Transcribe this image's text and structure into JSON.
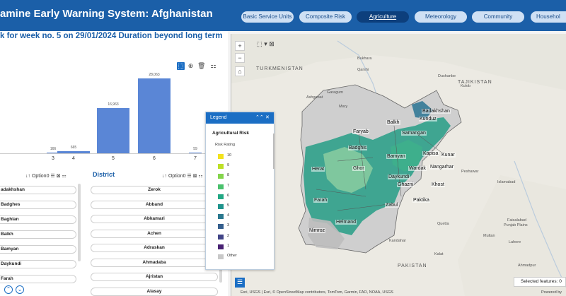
{
  "app": {
    "title": "amine Early Warning System: Afghanistan"
  },
  "nav_tabs": [
    {
      "label": "Basic Service Units",
      "active": false
    },
    {
      "label": "Composite Risk",
      "active": false
    },
    {
      "label": "Agriculture",
      "active": true
    },
    {
      "label": "Meteorology",
      "active": false
    },
    {
      "label": "Community",
      "active": false
    },
    {
      "label": "Househol",
      "active": false
    }
  ],
  "chart": {
    "title": "k for week no. 5 on  29/01/2024 Duration beyond long term",
    "tools": [
      "select",
      "zoom",
      "delete",
      "options"
    ]
  },
  "chart_data": {
    "type": "bar",
    "title": "",
    "categories": [
      "3",
      "4",
      "5",
      "6",
      "7"
    ],
    "values": [
      166,
      665,
      16963,
      28063,
      59
    ],
    "value_labels": [
      "166",
      "665",
      "16,963",
      "28,063",
      "59"
    ],
    "xlabel": "",
    "ylabel": "",
    "grid": false
  },
  "filters": {
    "province_option": "Option0",
    "district_option": "Option0",
    "district_heading": "District"
  },
  "provinces": [
    "adakhshan",
    "Badghes",
    "Baghlan",
    "Balkh",
    "Bamyan",
    "Daykundi",
    "Farah"
  ],
  "districts": [
    "Zerok",
    "Abband",
    "Abkamari",
    "Achen",
    "Adraskan",
    "Ahmadaba",
    "Ajristan",
    "Alasay"
  ],
  "map": {
    "country_labels": [
      "TURKMENISTAN",
      "TAJIKISTAN",
      "PAKISTAN"
    ],
    "province_labels": [
      "Badakhshan",
      "Kunduz",
      "Faryab",
      "Balkh",
      "Samangan",
      "Badghis",
      "Bamyan",
      "Kapisa",
      "Kunar",
      "Herat",
      "Ghor",
      "Daykundi",
      "Wardak",
      "Nangarhar",
      "Ghazni",
      "Khost",
      "Farah",
      "Zabul",
      "Paktika",
      "Helmand",
      "Nimroz"
    ],
    "city_labels": [
      "Bukhara",
      "Qarshi",
      "Ashgabat",
      "Garagum",
      "Mary",
      "Dushanbe",
      "Kulob",
      "Peshawar",
      "Islamabad",
      "Faisalabad",
      "Lahore",
      "Multan",
      "Punjab Plains",
      "Ahmadpur",
      "Quetta",
      "Kalat",
      "Kandahar"
    ],
    "zoom_in": "+",
    "zoom_out": "−"
  },
  "legend": {
    "header": "Legend",
    "layer": "Agricultural Risk",
    "subtitle": "Risk Rating",
    "items": [
      {
        "label": "10",
        "color": "#f2e21d"
      },
      {
        "label": "9",
        "color": "#bddf26"
      },
      {
        "label": "8",
        "color": "#84d44b"
      },
      {
        "label": "7",
        "color": "#4ac16d"
      },
      {
        "label": "6",
        "color": "#22a884"
      },
      {
        "label": "5",
        "color": "#1f948c"
      },
      {
        "label": "4",
        "color": "#2a788e"
      },
      {
        "label": "3",
        "color": "#355f8d"
      },
      {
        "label": "2",
        "color": "#414487"
      },
      {
        "label": "1",
        "color": "#482173"
      },
      {
        "label": "Other",
        "color": "#c8c8c8"
      }
    ]
  },
  "footer": {
    "attribution": "Esri, USGS | Esri, © OpenStreetMap contributors, TomTom, Garmin, FAO, NOAA, USGS",
    "selected_features": "Selected features: 0",
    "powered_by": "Powered by"
  }
}
